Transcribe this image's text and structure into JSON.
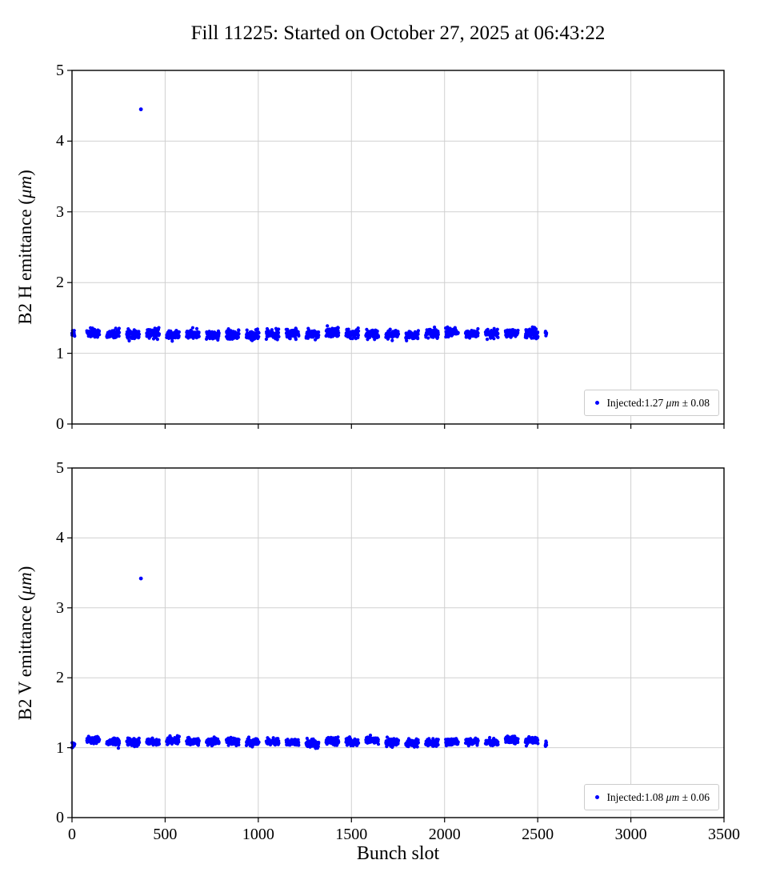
{
  "title": "Fill 11225: Started on October 27, 2025 at 06:43:22",
  "xlabel": "Bunch slot",
  "colors": {
    "marker": "#0000ff",
    "grid": "#d0d0d0",
    "frame": "#000000",
    "legend_border": "#cccccc"
  },
  "chart_data": [
    {
      "type": "scatter",
      "ylabel_prefix": "B2 H emittance (",
      "ylabel_math": "μm",
      "ylabel_suffix": ")",
      "xlim": [
        0,
        3500
      ],
      "ylim": [
        0,
        5
      ],
      "xticks": [
        0,
        500,
        1000,
        1500,
        2000,
        2500,
        3000,
        3500
      ],
      "yticks": [
        0,
        1,
        2,
        3,
        4,
        5
      ],
      "show_x_tick_labels": false,
      "grid": true,
      "legend": {
        "position": "lower right",
        "prefix": "Injected:1.27 ",
        "math": "μm",
        "suffix": " ± 0.08"
      },
      "series": [
        {
          "name": "Injected",
          "marker": "dot",
          "mean": 1.27,
          "std": 0.08,
          "std_visual": 0.032,
          "train_spec": {
            "seed": 11,
            "initial": {
              "start": 0,
              "len": 15
            },
            "region_start": 80,
            "region_end": 2548,
            "train_len": 68,
            "period": 107
          },
          "outliers": [
            {
              "x": 370,
              "y": 4.45
            }
          ]
        }
      ]
    },
    {
      "type": "scatter",
      "ylabel_prefix": "B2 V emittance (",
      "ylabel_math": "μm",
      "ylabel_suffix": ")",
      "xlim": [
        0,
        3500
      ],
      "ylim": [
        0,
        5
      ],
      "xticks": [
        0,
        500,
        1000,
        1500,
        2000,
        2500,
        3000,
        3500
      ],
      "yticks": [
        0,
        1,
        2,
        3,
        4,
        5
      ],
      "show_x_tick_labels": true,
      "grid": true,
      "legend": {
        "position": "lower right",
        "prefix": "Injected:1.08 ",
        "math": "μm",
        "suffix": " ± 0.06"
      },
      "series": [
        {
          "name": "Injected",
          "marker": "dot",
          "mean": 1.08,
          "std": 0.06,
          "std_visual": 0.026,
          "train_spec": {
            "seed": 29,
            "initial": {
              "start": 0,
              "len": 15
            },
            "region_start": 80,
            "region_end": 2548,
            "train_len": 68,
            "period": 107
          },
          "outliers": [
            {
              "x": 370,
              "y": 3.42
            }
          ]
        }
      ]
    }
  ]
}
